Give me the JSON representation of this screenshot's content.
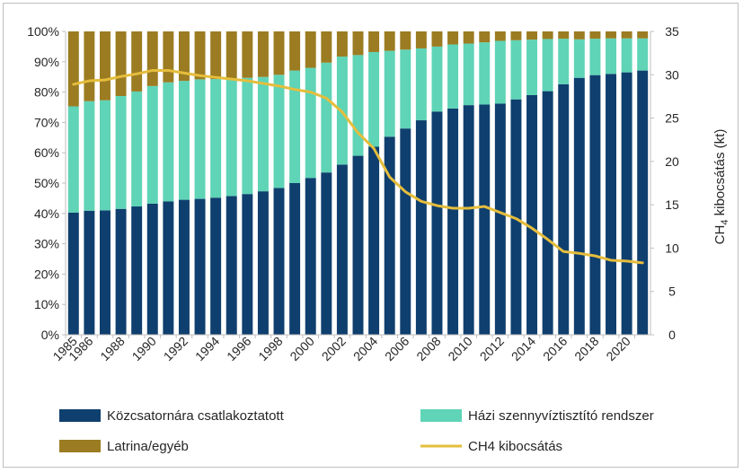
{
  "chart_data": {
    "type": "bar",
    "stacked": true,
    "percent_stacked": true,
    "categories": [
      "1985",
      "1986",
      "1987",
      "1988",
      "1989",
      "1990",
      "1991",
      "1992",
      "1993",
      "1994",
      "1995",
      "1996",
      "1997",
      "1998",
      "1999",
      "2000",
      "2001",
      "2002",
      "2003",
      "2004",
      "2005",
      "2006",
      "2007",
      "2008",
      "2009",
      "2010",
      "2011",
      "2012",
      "2013",
      "2014",
      "2015",
      "2016",
      "2017",
      "2018",
      "2019",
      "2020",
      "2021"
    ],
    "x_tick_labels": [
      "1985",
      "1986",
      "1988",
      "1990",
      "1992",
      "1994",
      "1996",
      "1998",
      "2000",
      "2002",
      "2004",
      "2006",
      "2008",
      "2010",
      "2012",
      "2014",
      "2016",
      "2018",
      "2020"
    ],
    "series": [
      {
        "name": "Közcsatornára csatlakoztatott",
        "color": "#0f3f6e",
        "values": [
          40.3,
          40.9,
          41.0,
          41.5,
          42.3,
          43.2,
          44.0,
          44.5,
          44.8,
          45.2,
          45.7,
          46.4,
          47.3,
          48.4,
          50.0,
          51.7,
          53.5,
          56.1,
          59.0,
          62.0,
          65.3,
          68.0,
          70.7,
          73.6,
          74.6,
          75.7,
          75.9,
          76.2,
          77.6,
          79.0,
          80.3,
          82.6,
          84.7,
          85.6,
          86.0,
          86.5,
          87.1
        ]
      },
      {
        "name": "Házi szennyvíztisztító rendszer",
        "color": "#5fd4b6",
        "values": [
          35.0,
          36.1,
          36.3,
          37.2,
          37.9,
          38.8,
          39.2,
          39.2,
          39.4,
          39.1,
          38.9,
          38.3,
          37.7,
          37.3,
          37.1,
          36.3,
          36.2,
          35.6,
          33.2,
          31.2,
          28.3,
          26.0,
          23.7,
          21.4,
          21.1,
          20.3,
          20.5,
          20.7,
          19.5,
          18.3,
          17.2,
          15.0,
          12.7,
          12.0,
          11.7,
          11.2,
          10.6
        ]
      },
      {
        "name": "Latrina/egyéb",
        "color": "#9c7c22",
        "values": [
          24.7,
          23.0,
          22.7,
          21.3,
          19.8,
          18.0,
          16.8,
          16.3,
          15.8,
          15.7,
          15.4,
          15.3,
          15.0,
          14.3,
          12.9,
          12.0,
          10.3,
          8.3,
          7.8,
          6.8,
          6.4,
          6.0,
          5.6,
          5.0,
          4.3,
          4.0,
          3.6,
          3.1,
          2.9,
          2.7,
          2.5,
          2.4,
          2.6,
          2.4,
          2.3,
          2.3,
          2.3
        ]
      }
    ],
    "line_series": {
      "name": "CH4 kibocsátás",
      "color": "#e5bd3c",
      "axis": "right",
      "values": [
        28.9,
        29.3,
        29.4,
        29.8,
        30.1,
        30.5,
        30.5,
        30.2,
        29.9,
        29.7,
        29.5,
        29.3,
        29.0,
        28.7,
        28.3,
        28.0,
        27.3,
        25.7,
        23.3,
        21.5,
        18.2,
        16.5,
        15.4,
        14.9,
        14.6,
        14.6,
        14.8,
        14.1,
        13.4,
        12.3,
        11.0,
        9.6,
        9.4,
        9.1,
        8.6,
        8.5,
        8.3
      ]
    },
    "y_left": {
      "min": 0,
      "max": 100,
      "step": 10,
      "suffix": "%"
    },
    "y_right": {
      "min": 0,
      "max": 35,
      "step": 5
    },
    "y_right_label": {
      "prefix": "CH",
      "subscript": "4",
      "suffix": " kibocsátás (kt)"
    },
    "legend_position": "bottom"
  }
}
